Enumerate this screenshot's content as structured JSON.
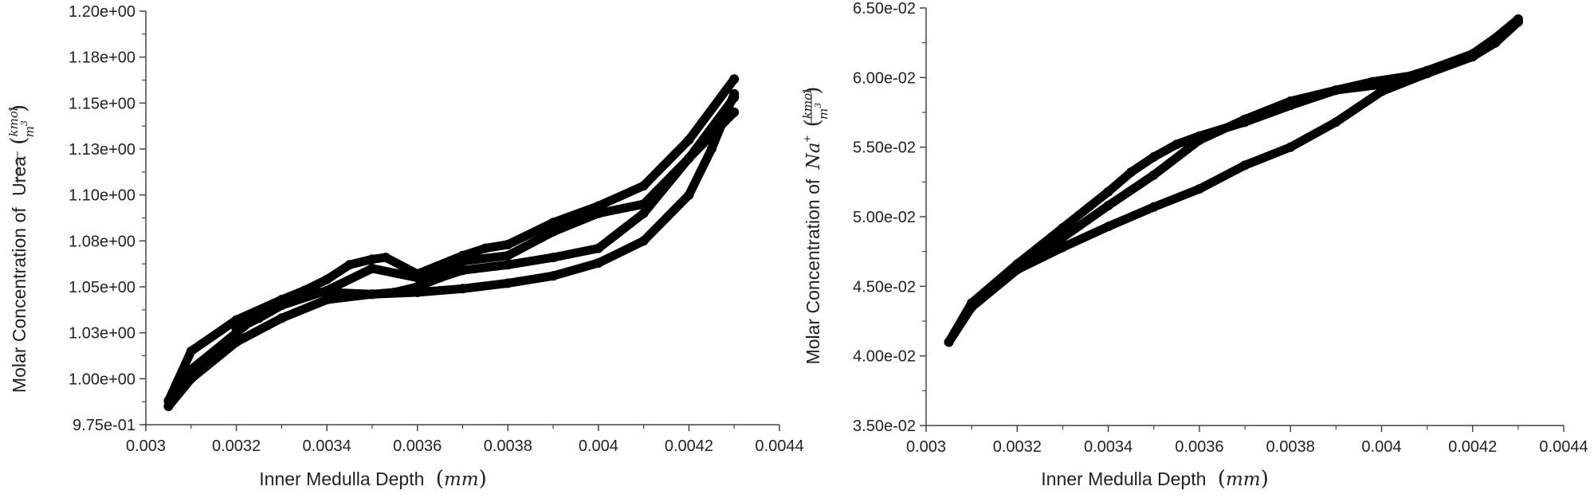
{
  "chart_data": [
    {
      "type": "scatter",
      "title": "",
      "xlabel_text": "Inner Medulla Depth",
      "xlabel_unit": "mm",
      "ylabel_prefix": "Molar Concentration of",
      "ylabel_species": "Urea",
      "ylabel_unit_num": "kmol",
      "ylabel_unit_den": "m",
      "ylabel_unit_exp": "3",
      "xlim": [
        0.003,
        0.0044
      ],
      "ylim": [
        0.975,
        1.2
      ],
      "xticks": [
        "0.003",
        "0.0032",
        "0.0034",
        "0.0036",
        "0.0038",
        "0.004",
        "0.0042",
        "0.0044"
      ],
      "xtick_values": [
        0.003,
        0.0032,
        0.0034,
        0.0036,
        0.0038,
        0.004,
        0.0042,
        0.0044
      ],
      "yticks": [
        "9.75e-01",
        "1.00e+00",
        "1.03e+00",
        "1.05e+00",
        "1.08e+00",
        "1.10e+00",
        "1.13e+00",
        "1.15e+00",
        "1.18e+00",
        "1.20e+00"
      ],
      "ytick_values": [
        0.975,
        1.0,
        1.025,
        1.05,
        1.075,
        1.1,
        1.125,
        1.15,
        1.175,
        1.2
      ],
      "marker_color": "#000000",
      "series": [
        {
          "x": [
            0.00305,
            0.0031,
            0.0032,
            0.0033,
            0.0034,
            0.0035,
            0.0036,
            0.0037,
            0.0038,
            0.0039,
            0.004,
            0.0041,
            0.0042,
            0.00425,
            0.0043
          ],
          "y": [
            0.985,
            1.0,
            1.02,
            1.033,
            1.043,
            1.046,
            1.047,
            1.049,
            1.052,
            1.056,
            1.063,
            1.075,
            1.1,
            1.125,
            1.155
          ]
        },
        {
          "x": [
            0.00305,
            0.0031,
            0.0032,
            0.00325,
            0.0033,
            0.00335,
            0.0034,
            0.0035,
            0.00355,
            0.0036,
            0.00365,
            0.0037,
            0.0038,
            0.0039,
            0.004,
            0.0041,
            0.0042,
            0.0043
          ],
          "y": [
            0.985,
            1.005,
            1.025,
            1.035,
            1.043,
            1.047,
            1.047,
            1.046,
            1.047,
            1.05,
            1.055,
            1.059,
            1.062,
            1.066,
            1.071,
            1.09,
            1.12,
            1.153
          ]
        },
        {
          "x": [
            0.00305,
            0.0031,
            0.0032,
            0.0033,
            0.00335,
            0.0034,
            0.00345,
            0.0035,
            0.00353,
            0.0036,
            0.0037,
            0.00375,
            0.0038,
            0.0039,
            0.004,
            0.0041,
            0.0042,
            0.0043
          ],
          "y": [
            0.988,
            1.015,
            1.032,
            1.043,
            1.048,
            1.054,
            1.062,
            1.065,
            1.066,
            1.057,
            1.067,
            1.071,
            1.073,
            1.085,
            1.094,
            1.105,
            1.13,
            1.163
          ]
        },
        {
          "x": [
            0.0032,
            0.00325,
            0.0033,
            0.0034,
            0.0035,
            0.0036,
            0.0037,
            0.0038,
            0.0039,
            0.004,
            0.0041,
            0.0042,
            0.0043
          ],
          "y": [
            1.027,
            1.033,
            1.04,
            1.048,
            1.06,
            1.055,
            1.064,
            1.067,
            1.08,
            1.09,
            1.095,
            1.12,
            1.145
          ]
        }
      ]
    },
    {
      "type": "scatter",
      "title": "",
      "xlabel_text": "Inner Medulla Depth",
      "xlabel_unit": "mm",
      "ylabel_prefix": "Molar Concentration of",
      "ylabel_species": "Na",
      "ylabel_species_sup": "+",
      "ylabel_unit_num": "kmol",
      "ylabel_unit_den": "m",
      "ylabel_unit_exp": "3",
      "xlim": [
        0.003,
        0.0044
      ],
      "ylim": [
        0.035,
        0.065
      ],
      "xticks": [
        "0.003",
        "0.0032",
        "0.0034",
        "0.0036",
        "0.0038",
        "0.004",
        "0.0042",
        "0.0044"
      ],
      "xtick_values": [
        0.003,
        0.0032,
        0.0034,
        0.0036,
        0.0038,
        0.004,
        0.0042,
        0.0044
      ],
      "yticks": [
        "3.50e-02",
        "4.00e-02",
        "4.50e-02",
        "5.00e-02",
        "5.50e-02",
        "6.00e-02",
        "6.50e-02"
      ],
      "ytick_values": [
        0.035,
        0.04,
        0.045,
        0.05,
        0.055,
        0.06,
        0.065
      ],
      "marker_color": "#000000",
      "series": [
        {
          "x": [
            0.00305,
            0.0031,
            0.0032,
            0.0033,
            0.0034,
            0.0035,
            0.0036,
            0.0037,
            0.0038,
            0.0039,
            0.004,
            0.0041,
            0.0042,
            0.00425,
            0.0043
          ],
          "y": [
            0.041,
            0.0435,
            0.0462,
            0.0478,
            0.0493,
            0.0507,
            0.052,
            0.0537,
            0.055,
            0.0568,
            0.059,
            0.0603,
            0.0615,
            0.0625,
            0.064
          ]
        },
        {
          "x": [
            0.00305,
            0.0031,
            0.0032,
            0.0033,
            0.0034,
            0.0035,
            0.0036,
            0.0037,
            0.0038,
            0.0039,
            0.004,
            0.0041,
            0.0042,
            0.0043
          ],
          "y": [
            0.041,
            0.0437,
            0.0463,
            0.0485,
            0.0508,
            0.053,
            0.0555,
            0.057,
            0.0583,
            0.0591,
            0.0595,
            0.0605,
            0.0617,
            0.064
          ]
        },
        {
          "x": [
            0.00305,
            0.0031,
            0.0032,
            0.0033,
            0.0034,
            0.00345,
            0.0035,
            0.00355,
            0.0036,
            0.0037,
            0.0038,
            0.0039,
            0.00398,
            0.0041,
            0.0042,
            0.0043
          ],
          "y": [
            0.041,
            0.0438,
            0.0466,
            0.0492,
            0.0518,
            0.0532,
            0.0543,
            0.0552,
            0.0558,
            0.0568,
            0.058,
            0.0591,
            0.0597,
            0.0603,
            0.0615,
            0.0642
          ]
        }
      ]
    }
  ]
}
